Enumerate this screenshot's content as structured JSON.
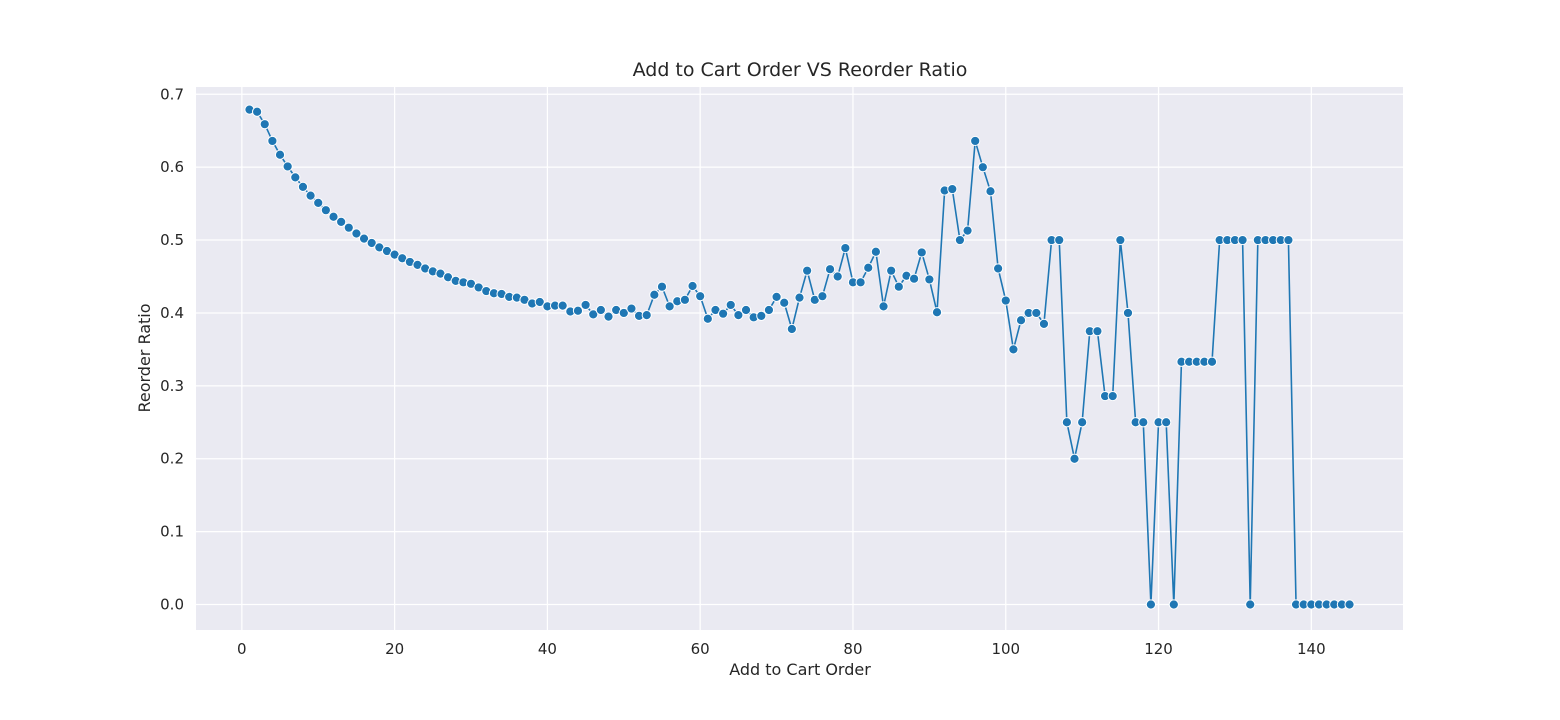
{
  "chart_data": {
    "type": "line",
    "title": "Add to Cart Order VS Reorder Ratio",
    "xlabel": "Add to Cart Order",
    "ylabel": "Reorder Ratio",
    "xlim": [
      -6,
      152
    ],
    "ylim": [
      -0.035,
      0.71
    ],
    "xticks": [
      0,
      20,
      40,
      60,
      80,
      100,
      120,
      140
    ],
    "yticks": [
      0.0,
      0.1,
      0.2,
      0.3,
      0.4,
      0.5,
      0.6,
      0.7
    ],
    "ytick_labels": [
      "0.0",
      "0.1",
      "0.2",
      "0.3",
      "0.4",
      "0.5",
      "0.6",
      "0.7"
    ],
    "grid": true,
    "legend": "none",
    "series_color": "#1f77b4",
    "marker": "circle",
    "x": [
      1,
      2,
      3,
      4,
      5,
      6,
      7,
      8,
      9,
      10,
      11,
      12,
      13,
      14,
      15,
      16,
      17,
      18,
      19,
      20,
      21,
      22,
      23,
      24,
      25,
      26,
      27,
      28,
      29,
      30,
      31,
      32,
      33,
      34,
      35,
      36,
      37,
      38,
      39,
      40,
      41,
      42,
      43,
      44,
      45,
      46,
      47,
      48,
      49,
      50,
      51,
      52,
      53,
      54,
      55,
      56,
      57,
      58,
      59,
      60,
      61,
      62,
      63,
      64,
      65,
      66,
      67,
      68,
      69,
      70,
      71,
      72,
      73,
      74,
      75,
      76,
      77,
      78,
      79,
      80,
      81,
      82,
      83,
      84,
      85,
      86,
      87,
      88,
      89,
      90,
      91,
      92,
      93,
      94,
      95,
      96,
      97,
      98,
      99,
      100,
      101,
      102,
      103,
      104,
      105,
      106,
      107,
      108,
      109,
      110,
      111,
      112,
      113,
      114,
      115,
      116,
      117,
      118,
      119,
      120,
      121,
      122,
      123,
      124,
      125,
      126,
      127,
      128,
      129,
      130,
      131,
      132,
      133,
      134,
      135,
      136,
      137,
      138,
      139,
      140,
      141,
      142,
      143,
      144,
      145
    ],
    "values": [
      0.679,
      0.676,
      0.659,
      0.636,
      0.617,
      0.601,
      0.586,
      0.573,
      0.561,
      0.551,
      0.541,
      0.532,
      0.525,
      0.517,
      0.509,
      0.502,
      0.496,
      0.49,
      0.485,
      0.48,
      0.475,
      0.47,
      0.466,
      0.461,
      0.457,
      0.454,
      0.449,
      0.444,
      0.442,
      0.44,
      0.435,
      0.43,
      0.427,
      0.426,
      0.422,
      0.421,
      0.418,
      0.413,
      0.415,
      0.409,
      0.41,
      0.41,
      0.402,
      0.403,
      0.411,
      0.398,
      0.404,
      0.395,
      0.404,
      0.4,
      0.406,
      0.396,
      0.397,
      0.425,
      0.436,
      0.409,
      0.416,
      0.418,
      0.437,
      0.423,
      0.392,
      0.404,
      0.399,
      0.411,
      0.397,
      0.404,
      0.394,
      0.396,
      0.404,
      0.422,
      0.414,
      0.378,
      0.421,
      0.458,
      0.418,
      0.423,
      0.46,
      0.45,
      0.489,
      0.442,
      0.442,
      0.462,
      0.484,
      0.409,
      0.458,
      0.436,
      0.451,
      0.447,
      0.483,
      0.446,
      0.401,
      0.568,
      0.57,
      0.5,
      0.513,
      0.636,
      0.6,
      0.567,
      0.461,
      0.417,
      0.35,
      0.39,
      0.4,
      0.4,
      0.385,
      0.5,
      0.5,
      0.25,
      0.2,
      0.25,
      0.375,
      0.375,
      0.286,
      0.286,
      0.5,
      0.4,
      0.25,
      0.25,
      0.0,
      0.25,
      0.25,
      0.0,
      0.333,
      0.333,
      0.333,
      0.333,
      0.333,
      0.5,
      0.5,
      0.5,
      0.5,
      0.0,
      0.5,
      0.5,
      0.5,
      0.5,
      0.5,
      0.0,
      0.0,
      0.0,
      0.0,
      0.0,
      0.0,
      0.0,
      0.0
    ]
  }
}
